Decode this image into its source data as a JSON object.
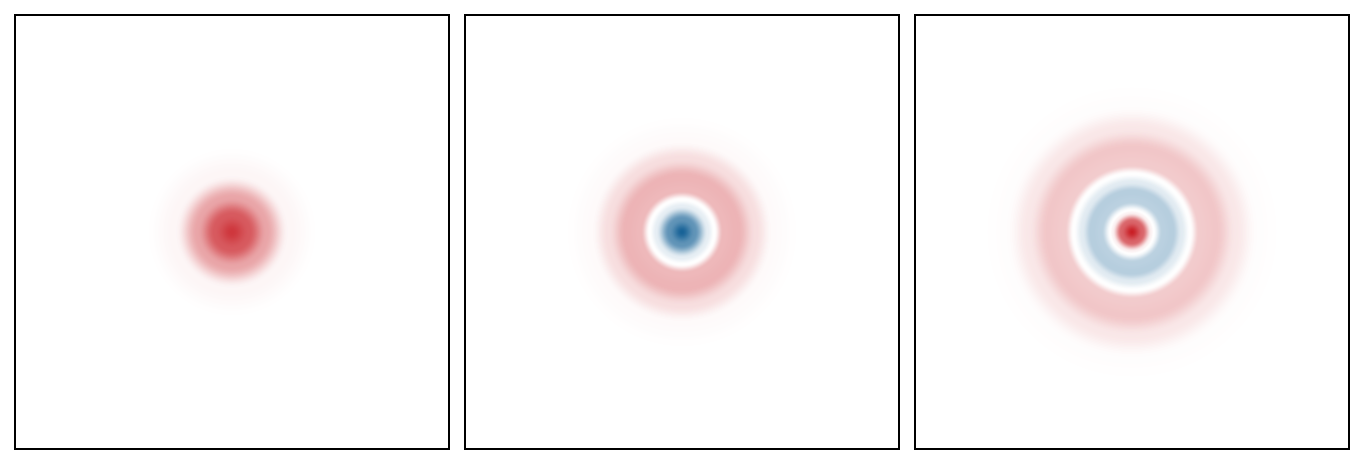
{
  "chart_data": [
    {
      "type": "heatmap",
      "title": "",
      "xlabel": "",
      "ylabel": "",
      "grid": false,
      "colormap": {
        "negative": "#0b5a91",
        "zero": "#ffffff",
        "positive": "#c6131a"
      },
      "mode": 0,
      "profile": [
        {
          "r": 0.0,
          "value": 0.85
        },
        {
          "r": 0.08,
          "value": 0.7
        },
        {
          "r": 0.16,
          "value": 0.38
        },
        {
          "r": 0.26,
          "value": 0.04
        },
        {
          "r": 0.4,
          "value": 0.0
        },
        {
          "r": 1.0,
          "value": 0.0
        }
      ]
    },
    {
      "type": "heatmap",
      "title": "",
      "xlabel": "",
      "ylabel": "",
      "grid": false,
      "colormap": {
        "negative": "#0b5a91",
        "zero": "#ffffff",
        "positive": "#c6131a"
      },
      "mode": 1,
      "profile": [
        {
          "r": 0.0,
          "value": -0.95
        },
        {
          "r": 0.06,
          "value": -0.65
        },
        {
          "r": 0.12,
          "value": -0.1
        },
        {
          "r": 0.15,
          "value": 0.0
        },
        {
          "r": 0.19,
          "value": 0.3
        },
        {
          "r": 0.26,
          "value": 0.32
        },
        {
          "r": 0.34,
          "value": 0.14
        },
        {
          "r": 0.42,
          "value": 0.02
        },
        {
          "r": 0.55,
          "value": 0.0
        },
        {
          "r": 1.0,
          "value": 0.0
        }
      ]
    },
    {
      "type": "heatmap",
      "title": "",
      "xlabel": "",
      "ylabel": "",
      "grid": false,
      "colormap": {
        "negative": "#0b5a91",
        "zero": "#ffffff",
        "positive": "#c6131a"
      },
      "mode": 2,
      "profile": [
        {
          "r": 0.0,
          "value": 0.95
        },
        {
          "r": 0.05,
          "value": 0.65
        },
        {
          "r": 0.09,
          "value": 0.05
        },
        {
          "r": 0.1,
          "value": 0.0
        },
        {
          "r": 0.14,
          "value": -0.28
        },
        {
          "r": 0.19,
          "value": -0.3
        },
        {
          "r": 0.23,
          "value": -0.12
        },
        {
          "r": 0.27,
          "value": 0.0
        },
        {
          "r": 0.31,
          "value": 0.22
        },
        {
          "r": 0.39,
          "value": 0.24
        },
        {
          "r": 0.48,
          "value": 0.1
        },
        {
          "r": 0.58,
          "value": 0.01
        },
        {
          "r": 0.7,
          "value": 0.0
        },
        {
          "r": 1.0,
          "value": 0.0
        }
      ]
    }
  ]
}
